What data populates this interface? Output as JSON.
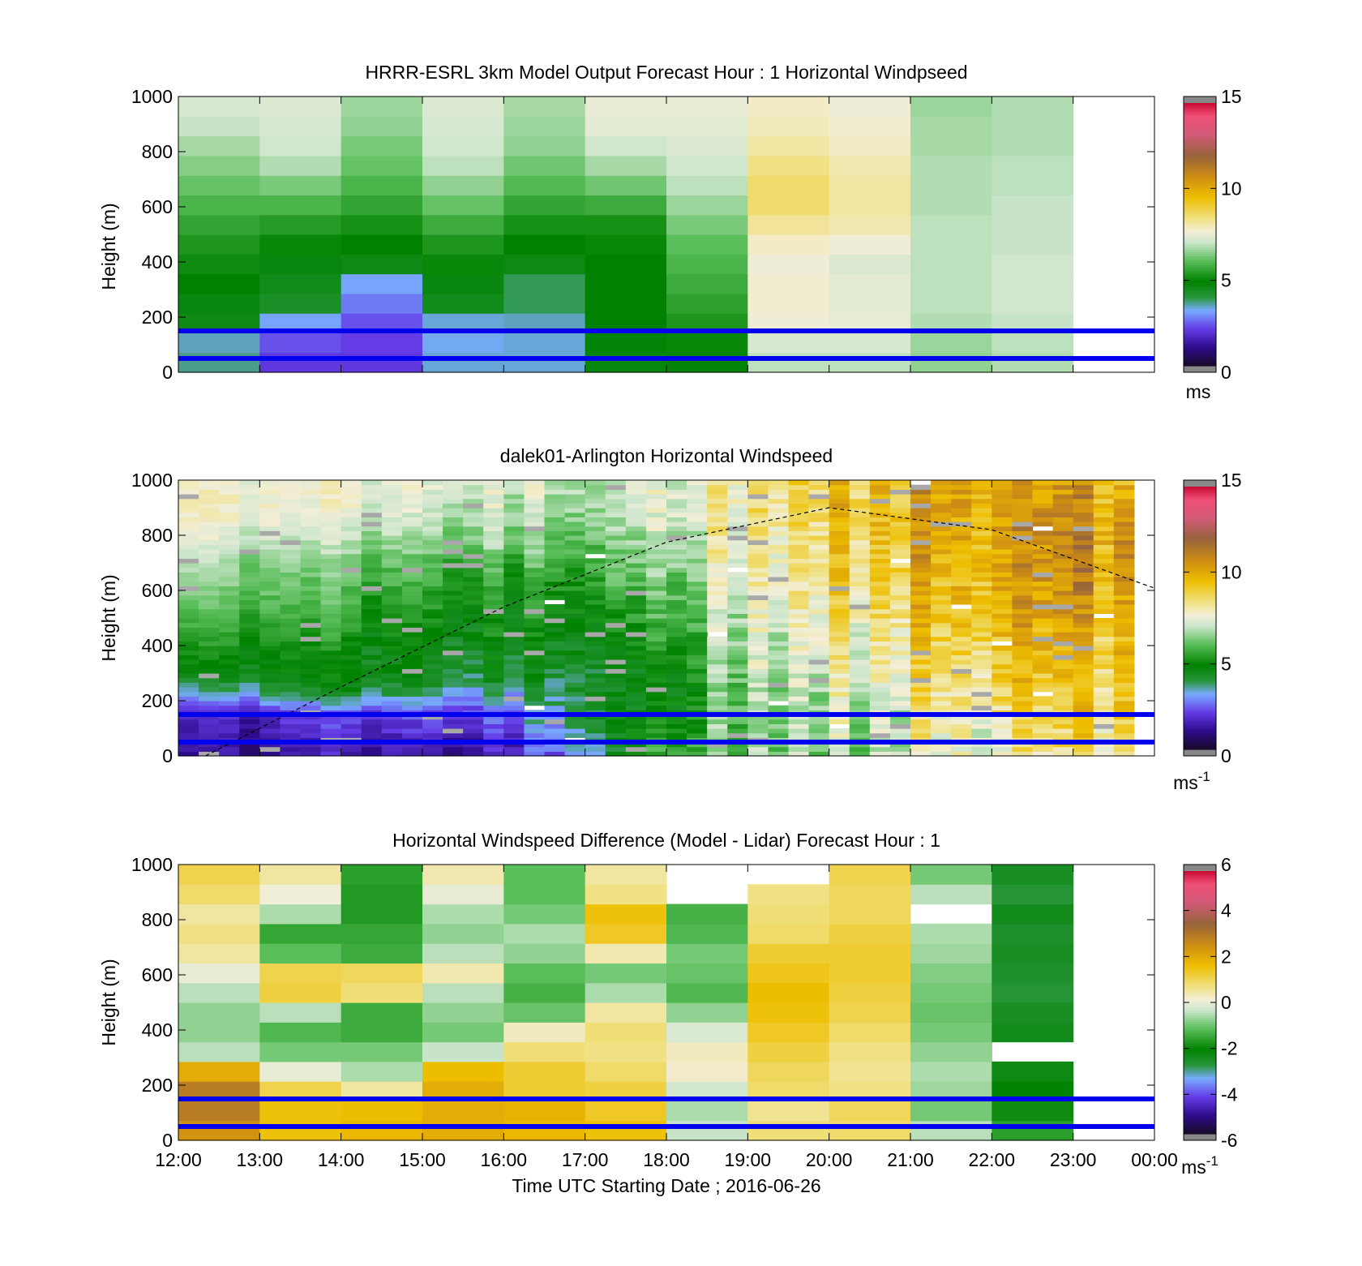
{
  "figure": {
    "xlabel": "Time UTC  Starting Date ; 2016-06-26",
    "x_ticks": [
      "12:00",
      "13:00",
      "14:00",
      "15:00",
      "16:00",
      "17:00",
      "18:00",
      "19:00",
      "20:00",
      "21:00",
      "22:00",
      "23:00",
      "00:00"
    ],
    "y_ticks": [
      "0",
      "200",
      "400",
      "600",
      "800",
      "1000"
    ],
    "ylabel": "Height (m)",
    "reference_line_heights_m": [
      50,
      150
    ],
    "reference_line_color": "#0000ee"
  },
  "chart_data": [
    {
      "type": "heatmap",
      "id": "model",
      "title": "HRRR-ESRL 3km Model Output   Forecast Hour : 1 Horizontal Windpseed",
      "ylabel": "Height (m)",
      "xlim": [
        "12:00",
        "00:00"
      ],
      "ylim": [
        0,
        1000
      ],
      "colorbar": {
        "label": "ms",
        "min": 0,
        "max": 15,
        "ticks": [
          "0",
          "5",
          "10",
          "15"
        ]
      },
      "profiles": [
        {
          "time": "12:00",
          "speed": [
            3.6,
            3.4,
            4.5,
            4.6,
            4.8,
            5.0,
            5.2,
            5.5,
            5.8,
            6.1,
            6.4,
            6.7,
            7.0,
            7.2
          ]
        },
        {
          "time": "13:00",
          "speed": [
            2.0,
            2.3,
            3.1,
            4.2,
            4.4,
            4.6,
            4.9,
            5.3,
            5.8,
            6.3,
            6.8,
            7.1,
            7.2,
            7.3
          ]
        },
        {
          "time": "14:00",
          "speed": [
            2.0,
            2.1,
            2.3,
            2.7,
            3.1,
            4.5,
            4.8,
            5.1,
            5.5,
            5.8,
            6.1,
            6.3,
            6.5,
            6.6
          ]
        },
        {
          "time": "15:00",
          "speed": [
            3.3,
            3.2,
            3.3,
            4.4,
            4.6,
            4.9,
            5.2,
            5.6,
            6.1,
            6.5,
            6.9,
            7.1,
            7.2,
            7.3
          ]
        },
        {
          "time": "16:00",
          "speed": [
            3.3,
            3.3,
            3.4,
            3.8,
            3.8,
            4.5,
            4.8,
            5.1,
            5.5,
            5.9,
            6.2,
            6.5,
            6.6,
            6.7
          ]
        },
        {
          "time": "17:00",
          "speed": [
            4.6,
            4.7,
            4.8,
            4.8,
            4.8,
            4.8,
            4.9,
            5.1,
            5.6,
            6.2,
            6.7,
            7.1,
            7.4,
            7.5
          ]
        },
        {
          "time": "18:00",
          "speed": [
            4.7,
            4.9,
            5.2,
            5.4,
            5.6,
            5.8,
            6.0,
            6.3,
            6.6,
            6.9,
            7.1,
            7.3,
            7.4,
            7.5
          ]
        },
        {
          "time": "19:00",
          "speed": [
            6.9,
            7.2,
            7.6,
            7.7,
            7.7,
            7.6,
            7.8,
            8.2,
            8.6,
            8.6,
            8.4,
            8.1,
            7.9,
            7.8
          ]
        },
        {
          "time": "20:00",
          "speed": [
            6.9,
            7.2,
            7.5,
            7.4,
            7.4,
            7.3,
            7.6,
            8.0,
            8.1,
            8.1,
            8.0,
            7.8,
            7.7,
            7.6
          ]
        },
        {
          "time": "21:00",
          "speed": [
            6.5,
            6.6,
            6.8,
            6.9,
            6.9,
            6.9,
            6.9,
            6.9,
            6.8,
            6.8,
            6.8,
            6.7,
            6.7,
            6.6
          ]
        },
        {
          "time": "22:00",
          "speed": [
            6.8,
            6.9,
            7.0,
            7.1,
            7.1,
            7.1,
            7.0,
            7.0,
            7.0,
            6.9,
            6.9,
            6.8,
            6.8,
            6.8
          ]
        }
      ]
    },
    {
      "type": "heatmap",
      "id": "lidar",
      "title": "dalek01-Arlington  Horizontal Windspeed",
      "ylabel": "Height (m)",
      "xlim": [
        "12:00",
        "00:00"
      ],
      "ylim": [
        0,
        1000
      ],
      "colorbar": {
        "label": "ms-1",
        "min": 0,
        "max": 15,
        "ticks": [
          "0",
          "5",
          "10",
          "15"
        ]
      },
      "trend_keyframes": [
        {
          "time": "12:00",
          "speed": [
            1.0,
            1.2,
            1.5,
            3.0,
            4.6,
            5.0,
            5.5,
            6.0,
            6.4,
            6.7,
            7.2,
            7.6,
            7.8,
            7.5
          ]
        },
        {
          "time": "14:00",
          "speed": [
            1.4,
            1.6,
            2.1,
            4.3,
            4.7,
            4.8,
            5.2,
            5.6,
            5.8,
            6.1,
            6.7,
            7.2,
            7.5,
            7.6
          ]
        },
        {
          "time": "16:00",
          "speed": [
            1.5,
            1.8,
            2.4,
            3.3,
            4.2,
            4.4,
            4.7,
            5.0,
            5.3,
            5.7,
            6.3,
            6.8,
            7.1,
            7.2
          ]
        },
        {
          "time": "17:00",
          "speed": [
            3.2,
            3.6,
            4.3,
            4.2,
            4.3,
            4.6,
            4.8,
            5.0,
            5.3,
            5.6,
            6.0,
            6.4,
            6.7,
            6.9
          ]
        },
        {
          "time": "18:00",
          "speed": [
            5.5,
            5.2,
            4.8,
            4.6,
            4.7,
            5.0,
            5.3,
            5.6,
            6.0,
            6.4,
            6.7,
            7.0,
            7.2,
            7.2
          ]
        },
        {
          "time": "19:00",
          "speed": [
            6.6,
            6.5,
            6.4,
            6.6,
            6.9,
            7.1,
            7.3,
            7.4,
            7.6,
            7.8,
            8.0,
            8.2,
            8.3,
            8.3
          ]
        },
        {
          "time": "20:00",
          "speed": [
            6.9,
            6.9,
            7.1,
            7.3,
            7.5,
            7.8,
            8.1,
            8.4,
            8.6,
            8.8,
            9.0,
            9.2,
            9.3,
            9.3
          ]
        },
        {
          "time": "21:00",
          "speed": [
            7.3,
            7.4,
            7.6,
            7.8,
            8.1,
            8.4,
            8.8,
            9.1,
            9.4,
            9.6,
            9.8,
            9.9,
            10.0,
            10.0
          ]
        },
        {
          "time": "22:00",
          "speed": [
            7.8,
            8.0,
            8.4,
            8.8,
            9.1,
            9.4,
            9.6,
            9.8,
            9.9,
            10.1,
            10.2,
            10.3,
            10.3,
            10.3
          ]
        },
        {
          "time": "23:00",
          "speed": [
            8.1,
            8.3,
            8.6,
            8.9,
            9.2,
            9.4,
            9.7,
            9.9,
            10.2,
            10.4,
            10.5,
            10.4,
            10.2,
            10.0
          ]
        },
        {
          "time": "23:40",
          "speed": [
            8.0,
            8.1,
            8.4,
            8.6,
            8.8,
            9.0,
            9.2,
            9.4,
            9.6,
            9.7,
            9.8,
            9.6,
            9.3,
            9.0
          ]
        }
      ],
      "time_step_minutes": 15,
      "height_levels": 60,
      "data_end": "23:45",
      "dashed_curve": [
        {
          "time": "12:20",
          "height": 0
        },
        {
          "time": "14:00",
          "height": 250
        },
        {
          "time": "16:00",
          "height": 540
        },
        {
          "time": "18:00",
          "height": 775
        },
        {
          "time": "20:00",
          "height": 900
        },
        {
          "time": "22:00",
          "height": 820
        },
        {
          "time": "23:59",
          "height": 610
        }
      ]
    },
    {
      "type": "heatmap",
      "id": "difference",
      "title": "Horizontal Windspeed Difference (Model - Lidar) Forecast Hour : 1",
      "ylabel": "Height (m)",
      "xlabel": "Time UTC  Starting Date ; 2016-06-26",
      "xlim": [
        "12:00",
        "00:00"
      ],
      "ylim": [
        0,
        1000
      ],
      "colorbar": {
        "label": "ms-1",
        "min": -6,
        "max": 6,
        "ticks": [
          "-6",
          "-4",
          "-2",
          "0",
          "2",
          "4",
          "6"
        ]
      },
      "profiles": [
        {
          "time": "12:00",
          "diff": [
            2.5,
            3.0,
            3.0,
            2.0,
            -0.5,
            -0.8,
            -0.8,
            -0.5,
            0.0,
            0.5,
            0.7,
            0.5,
            0.9,
            1.1
          ]
        },
        {
          "time": "13:00",
          "diff": [
            1.6,
            1.6,
            1.1,
            0.0,
            -1.0,
            -1.3,
            -0.5,
            1.2,
            1.1,
            -1.2,
            -1.6,
            -0.6,
            0.1,
            0.5
          ]
        },
        {
          "time": "14:00",
          "diff": [
            1.8,
            1.7,
            0.5,
            -0.6,
            -1.0,
            -1.5,
            -1.5,
            0.8,
            1.0,
            -1.5,
            -1.6,
            -1.8,
            -1.8,
            -1.7
          ]
        },
        {
          "time": "15:00",
          "diff": [
            2.0,
            2.0,
            2.0,
            1.7,
            -0.4,
            -1.0,
            -0.8,
            -0.5,
            0.4,
            -0.5,
            -0.8,
            -0.6,
            0.0,
            0.4
          ]
        },
        {
          "time": "16:00",
          "diff": [
            1.8,
            1.9,
            1.3,
            1.3,
            0.8,
            0.3,
            -1.1,
            -1.4,
            -1.2,
            -0.8,
            -0.6,
            -1.0,
            -1.2,
            -1.2
          ]
        },
        {
          "time": "17:00",
          "diff": [
            1.6,
            1.4,
            1.2,
            0.9,
            0.7,
            0.8,
            0.5,
            -0.6,
            -1.0,
            0.4,
            1.4,
            1.6,
            0.7,
            0.5
          ]
        },
        {
          "time": "18:00",
          "diff": [
            -0.4,
            -0.6,
            -0.3,
            0.2,
            0.3,
            -0.2,
            -0.8,
            -1.3,
            -1.1,
            -1.0,
            -1.3,
            -1.4,
            null,
            null
          ]
        },
        {
          "time": "19:00",
          "diff": [
            0.8,
            0.6,
            0.9,
            1.0,
            1.2,
            1.4,
            1.6,
            1.7,
            1.5,
            1.3,
            0.9,
            0.8,
            0.7,
            null
          ]
        },
        {
          "time": "20:00",
          "diff": [
            0.9,
            1.0,
            0.7,
            0.6,
            0.7,
            0.9,
            1.1,
            1.2,
            1.3,
            1.3,
            1.2,
            1.0,
            1.0,
            1.1
          ]
        },
        {
          "time": "21:00",
          "diff": [
            -0.5,
            -1.0,
            -0.7,
            -0.6,
            -0.8,
            -1.0,
            -1.1,
            -1.0,
            -0.9,
            -0.7,
            -0.6,
            null,
            -0.5,
            -1.0
          ]
        },
        {
          "time": "22:00",
          "diff": [
            -1.7,
            -2.0,
            -2.2,
            -2.4,
            null,
            -2.5,
            -2.6,
            -2.8,
            -2.7,
            -2.6,
            -2.7,
            -2.5,
            -2.8,
            -2.6
          ]
        }
      ]
    }
  ]
}
